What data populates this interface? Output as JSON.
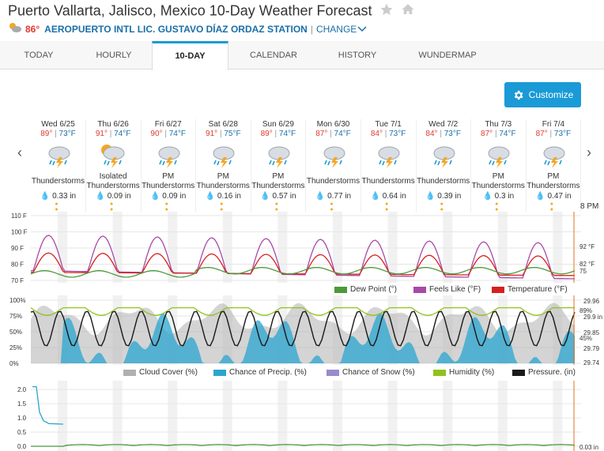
{
  "header": {
    "title": "Puerto Vallarta, Jalisco, Mexico 10-Day Weather Forecast"
  },
  "station": {
    "current_temp": "86°",
    "name": "AEROPUERTO INTL LIC. GUSTAVO DÍAZ ORDAZ STATION",
    "separator": "|",
    "change_label": "CHANGE"
  },
  "tabs": [
    "TODAY",
    "HOURLY",
    "10-DAY",
    "CALENDAR",
    "HISTORY",
    "WUNDERMAP"
  ],
  "customize_label": "Customize",
  "now_label": "8 PM",
  "days": [
    {
      "date": "Wed 6/25",
      "hi": "89°",
      "lo": "73°F",
      "cond1": "",
      "cond2": "Thunderstorms",
      "rain": "0.33 in",
      "sun": false
    },
    {
      "date": "Thu 6/26",
      "hi": "91°",
      "lo": "74°F",
      "cond1": "Isolated",
      "cond2": "Thunderstorms",
      "rain": "0.09 in",
      "sun": true
    },
    {
      "date": "Fri 6/27",
      "hi": "90°",
      "lo": "74°F",
      "cond1": "PM",
      "cond2": "Thunderstorms",
      "rain": "0.09 in",
      "sun": false
    },
    {
      "date": "Sat 6/28",
      "hi": "91°",
      "lo": "75°F",
      "cond1": "PM",
      "cond2": "Thunderstorms",
      "rain": "0.16 in",
      "sun": false
    },
    {
      "date": "Sun 6/29",
      "hi": "89°",
      "lo": "74°F",
      "cond1": "PM",
      "cond2": "Thunderstorms",
      "rain": "0.57 in",
      "sun": false
    },
    {
      "date": "Mon 6/30",
      "hi": "87°",
      "lo": "74°F",
      "cond1": "",
      "cond2": "Thunderstorms",
      "rain": "0.77 in",
      "sun": false
    },
    {
      "date": "Tue 7/1",
      "hi": "84°",
      "lo": "73°F",
      "cond1": "",
      "cond2": "Thunderstorms",
      "rain": "0.64 in",
      "sun": false
    },
    {
      "date": "Wed 7/2",
      "hi": "84°",
      "lo": "73°F",
      "cond1": "",
      "cond2": "Thunderstorms",
      "rain": "0.39 in",
      "sun": false
    },
    {
      "date": "Thu 7/3",
      "hi": "87°",
      "lo": "74°F",
      "cond1": "PM",
      "cond2": "Thunderstorms",
      "rain": "0.3 in",
      "sun": false
    },
    {
      "date": "Fri 7/4",
      "hi": "87°",
      "lo": "73°F",
      "cond1": "PM",
      "cond2": "Thunderstorms",
      "rain": "0.47 in",
      "sun": false
    }
  ],
  "colors": {
    "dew_point": "#4a9a3a",
    "feels_like": "#a84aa8",
    "temperature": "#d62020",
    "cloud_cover": "#b0b0b0",
    "precip": "#2aa5d0",
    "snow": "#9a8ad0",
    "humidity": "#8ec31c",
    "pressure": "#1a1a1a",
    "accent": "#1a9ad6"
  },
  "chart_data": [
    {
      "type": "line",
      "yticks": [
        "110 F",
        "100 F",
        "90 F",
        "80 F",
        "70 F"
      ],
      "ylim": [
        70,
        110
      ],
      "series": [
        {
          "name": "Dew Point (°)",
          "end_label": "75"
        },
        {
          "name": "Feels Like (°F)",
          "end_label": "92 °F"
        },
        {
          "name": "Temperature (°F)",
          "end_label": "82 °F"
        }
      ]
    },
    {
      "type": "area",
      "yticks_left": [
        "100%",
        "75%",
        "50%",
        "25%",
        "0%"
      ],
      "yticks_right": [
        "29.96",
        "29.9 in",
        "29.85",
        "29.79",
        "29.74"
      ],
      "series": [
        {
          "name": "Cloud Cover (%)"
        },
        {
          "name": "Chance of Precip. (%)",
          "end_label": "45%"
        },
        {
          "name": "Chance of Snow (%)"
        },
        {
          "name": "Humidity (%)",
          "end_label": "89%"
        },
        {
          "name": "Pressure. (in)",
          "end_label": "29.9 in"
        }
      ]
    },
    {
      "type": "line",
      "yticks": [
        "2.0",
        "1.5",
        "1.0",
        "0.5",
        "0.0"
      ],
      "ylim": [
        0,
        2.2
      ],
      "series": [
        {
          "name": "",
          "end_label": "0.03 in"
        }
      ]
    }
  ]
}
